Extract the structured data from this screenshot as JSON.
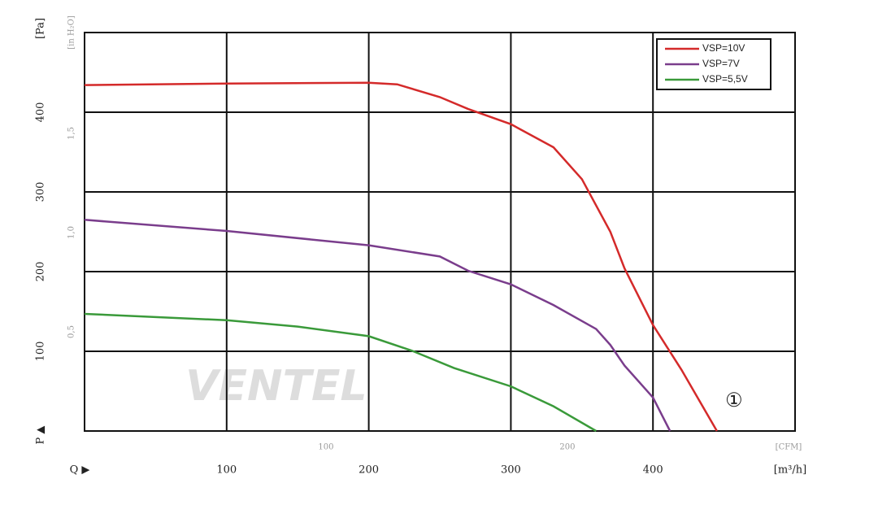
{
  "chart_data": {
    "type": "line",
    "y_axis_label": "[Pa]",
    "y2_axis_label": "[in H₂O]",
    "y_symbol": "P ▲",
    "x_symbol": "Q ▶",
    "x_axis_label": "[m³/h]",
    "x2_axis_label": "[CFM]",
    "watermark": "VENTEL",
    "annotation": {
      "text": "①",
      "x": 457,
      "y": 37
    },
    "xlim": [
      0,
      500
    ],
    "xticks": [
      100,
      200,
      300,
      400
    ],
    "x2lim": [
      0,
      294.3
    ],
    "x2ticks": [
      100,
      200
    ],
    "ylim": [
      0,
      500
    ],
    "yticks": [
      100,
      200,
      300,
      400
    ],
    "y2lim": [
      0,
      2.008
    ],
    "y2ticks": [
      {
        "value": 0.5,
        "label": "0,5"
      },
      {
        "value": 1.0,
        "label": "1,0"
      },
      {
        "value": 1.5,
        "label": "1,5"
      }
    ],
    "grid": true,
    "legend": "upper right",
    "series": [
      {
        "name": "VSP=10V",
        "color": "#d42a2a",
        "x": [
          0,
          100,
          200,
          220,
          250,
          270,
          300,
          330,
          350,
          370,
          380,
          400,
          420,
          445
        ],
        "values": [
          434,
          436,
          437,
          435,
          419,
          404,
          385,
          356,
          316,
          250,
          204,
          133,
          77,
          0
        ]
      },
      {
        "name": "VSP=7V",
        "color": "#7a3d8c",
        "x": [
          0,
          100,
          200,
          250,
          270,
          300,
          330,
          360,
          370,
          380,
          400,
          412
        ],
        "values": [
          265,
          251,
          233,
          219,
          201,
          184,
          158,
          128,
          108,
          82,
          42,
          0
        ]
      },
      {
        "name": "VSP=5,5V",
        "color": "#3a9a3a",
        "x": [
          0,
          100,
          150,
          200,
          230,
          260,
          300,
          330,
          360
        ],
        "values": [
          147,
          139,
          131,
          119,
          101,
          79,
          56,
          31,
          0
        ]
      }
    ]
  }
}
